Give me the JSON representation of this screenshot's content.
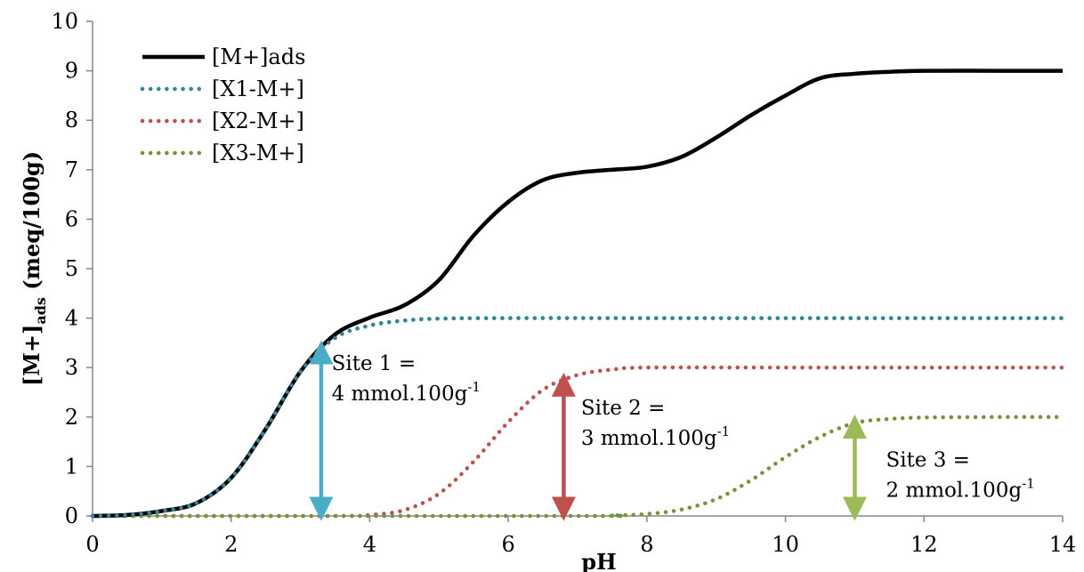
{
  "chart_data": {
    "type": "line",
    "title": "",
    "xlabel": "pH",
    "ylabel": "[M+]ads (meq/100g)",
    "ylabel_parts": {
      "main": "[M+]",
      "sub": "ads",
      "unit": " (meq/100g)"
    },
    "xlim": [
      0,
      14
    ],
    "ylim": [
      0,
      10
    ],
    "xticks": [
      0,
      2,
      4,
      6,
      8,
      10,
      12,
      14
    ],
    "yticks": [
      0,
      1,
      2,
      3,
      4,
      5,
      6,
      7,
      8,
      9,
      10
    ],
    "grid": false,
    "legend_position": "top-left",
    "series": [
      {
        "name": "[M+]ads",
        "style": "solid",
        "color": "#000000",
        "points": [
          [
            0,
            0.0
          ],
          [
            0.5,
            0.02
          ],
          [
            1.0,
            0.1
          ],
          [
            1.5,
            0.26
          ],
          [
            2.0,
            0.77
          ],
          [
            2.5,
            1.76
          ],
          [
            3.0,
            2.92
          ],
          [
            3.5,
            3.67
          ],
          [
            4.0,
            4.01
          ],
          [
            4.5,
            4.26
          ],
          [
            5.0,
            4.77
          ],
          [
            5.5,
            5.67
          ],
          [
            6.0,
            6.35
          ],
          [
            6.5,
            6.79
          ],
          [
            7.0,
            6.94
          ],
          [
            7.5,
            7.0
          ],
          [
            8.0,
            7.06
          ],
          [
            8.5,
            7.26
          ],
          [
            9.0,
            7.65
          ],
          [
            9.5,
            8.1
          ],
          [
            10.0,
            8.5
          ],
          [
            10.5,
            8.85
          ],
          [
            11.0,
            8.94
          ],
          [
            11.5,
            8.98
          ],
          [
            12.0,
            9.0
          ],
          [
            13.0,
            9.0
          ],
          [
            14.0,
            9.0
          ]
        ]
      },
      {
        "name": "[X1-M+]",
        "style": "dotted",
        "color": "#31859c",
        "points": [
          [
            0,
            0.0
          ],
          [
            0.5,
            0.02
          ],
          [
            1.0,
            0.1
          ],
          [
            1.5,
            0.26
          ],
          [
            2.0,
            0.77
          ],
          [
            2.5,
            1.76
          ],
          [
            3.0,
            2.92
          ],
          [
            3.5,
            3.6
          ],
          [
            4.0,
            3.85
          ],
          [
            4.5,
            3.95
          ],
          [
            5.0,
            3.99
          ],
          [
            6.0,
            4.0
          ],
          [
            8.0,
            4.0
          ],
          [
            10.0,
            4.0
          ],
          [
            12.0,
            4.0
          ],
          [
            14.0,
            4.0
          ]
        ]
      },
      {
        "name": "[X2-M+]",
        "style": "dotted",
        "color": "#c0504d",
        "points": [
          [
            0,
            0.0
          ],
          [
            3.5,
            0.0
          ],
          [
            4.0,
            0.02
          ],
          [
            4.5,
            0.12
          ],
          [
            5.0,
            0.45
          ],
          [
            5.5,
            1.1
          ],
          [
            6.0,
            1.9
          ],
          [
            6.5,
            2.55
          ],
          [
            7.0,
            2.85
          ],
          [
            7.5,
            2.96
          ],
          [
            8.0,
            3.0
          ],
          [
            10.0,
            3.0
          ],
          [
            12.0,
            3.0
          ],
          [
            14.0,
            3.0
          ]
        ]
      },
      {
        "name": "[X3-M+]",
        "style": "dotted",
        "color": "#77933c",
        "points": [
          [
            0,
            0.0
          ],
          [
            7.0,
            0.0
          ],
          [
            7.5,
            0.01
          ],
          [
            8.0,
            0.04
          ],
          [
            8.5,
            0.13
          ],
          [
            9.0,
            0.34
          ],
          [
            9.5,
            0.72
          ],
          [
            10.0,
            1.19
          ],
          [
            10.5,
            1.6
          ],
          [
            11.0,
            1.88
          ],
          [
            11.5,
            1.96
          ],
          [
            12.0,
            1.99
          ],
          [
            13.0,
            2.0
          ],
          [
            14.0,
            2.0
          ]
        ]
      }
    ],
    "annotations": [
      {
        "x": 3.3,
        "y_from": 0,
        "y_to": 3.45,
        "color": "#4bacc6",
        "label_line1": "Site 1 =",
        "label_line2": "4 mmol.100g",
        "label_sup": "-1",
        "label_x": 3.45,
        "label_y": 2.95
      },
      {
        "x": 6.8,
        "y_from": 0,
        "y_to": 2.8,
        "color": "#c0504d",
        "label_line1": "Site 2 =",
        "label_line2": "3 mmol.100g",
        "label_sup": "-1",
        "label_x": 7.05,
        "label_y": 2.05
      },
      {
        "x": 11.0,
        "y_from": 0,
        "y_to": 1.95,
        "color": "#9bbb59",
        "label_line1": "Site 3 =",
        "label_line2": "2 mmol.100g",
        "label_sup": "-1",
        "label_x": 11.45,
        "label_y": 1.0
      }
    ]
  }
}
